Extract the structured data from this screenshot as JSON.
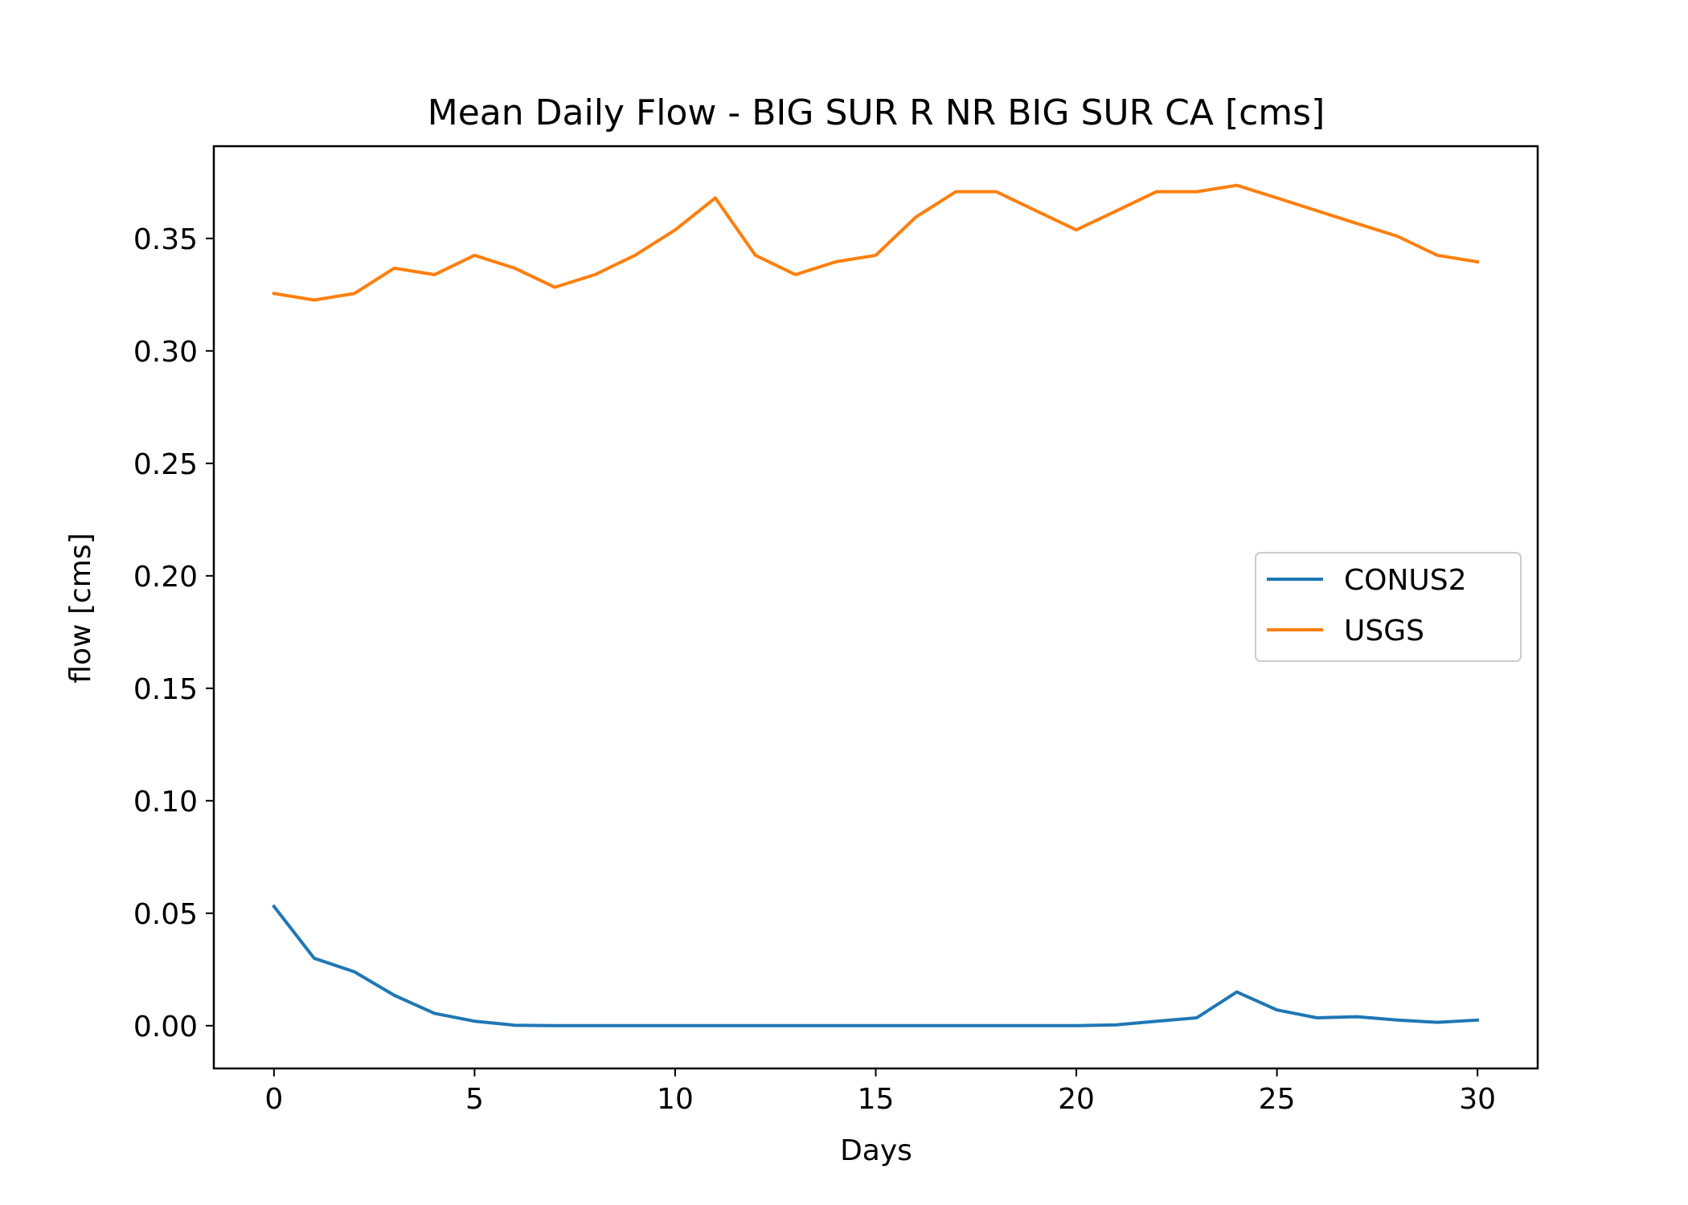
{
  "chart_data": {
    "type": "line",
    "title": "Mean Daily Flow - BIG SUR R NR BIG SUR CA [cms]",
    "xlabel": "Days",
    "ylabel": "flow [cms]",
    "xlim": [
      -1.5,
      31.5
    ],
    "ylim": [
      -0.019,
      0.391
    ],
    "xticks": [
      0,
      5,
      10,
      15,
      20,
      25,
      30
    ],
    "xtick_labels": [
      "0",
      "5",
      "10",
      "15",
      "20",
      "25",
      "30"
    ],
    "yticks": [
      0.0,
      0.05,
      0.1,
      0.15,
      0.2,
      0.25,
      0.3,
      0.35
    ],
    "ytick_labels": [
      "0.00",
      "0.05",
      "0.10",
      "0.15",
      "0.20",
      "0.25",
      "0.30",
      "0.35"
    ],
    "grid": false,
    "legend_position": "center right",
    "x": [
      0,
      1,
      2,
      3,
      4,
      5,
      6,
      7,
      8,
      9,
      10,
      11,
      12,
      13,
      14,
      15,
      16,
      17,
      18,
      19,
      20,
      21,
      22,
      23,
      24,
      25,
      26,
      27,
      28,
      29,
      30
    ],
    "series": [
      {
        "name": "CONUS2",
        "color": "#1f77b4",
        "values": [
          0.053,
          0.03,
          0.024,
          0.0135,
          0.0055,
          0.002,
          0.0002,
          0.0,
          0.0,
          0.0,
          0.0,
          0.0,
          0.0,
          0.0,
          0.0,
          0.0,
          0.0,
          0.0,
          0.0,
          0.0,
          0.0,
          0.0004,
          0.002,
          0.0035,
          0.015,
          0.007,
          0.0035,
          0.004,
          0.0025,
          0.0015,
          0.0025
        ]
      },
      {
        "name": "USGS",
        "color": "#ff7f0e",
        "values": [
          0.3255,
          0.3226,
          0.3255,
          0.3368,
          0.3339,
          0.3425,
          0.3368,
          0.3283,
          0.3339,
          0.3425,
          0.3538,
          0.368,
          0.3425,
          0.3339,
          0.3396,
          0.3425,
          0.3595,
          0.3708,
          0.3708,
          0.3623,
          0.3538,
          0.3623,
          0.3708,
          0.3708,
          0.3736,
          0.368,
          0.3623,
          0.3566,
          0.351,
          0.3425,
          0.3396
        ]
      }
    ]
  }
}
